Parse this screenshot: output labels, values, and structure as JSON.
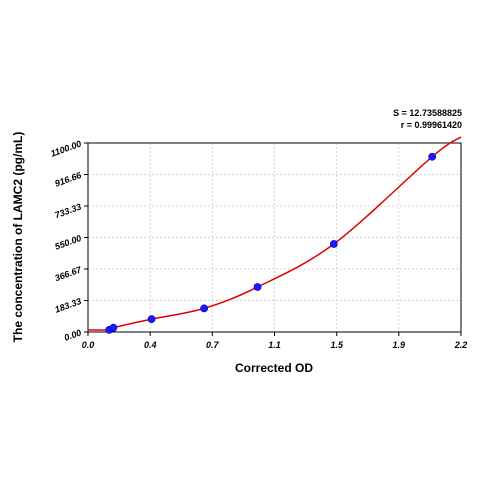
{
  "chart_data": {
    "type": "scatter",
    "xlabel": "Corrected OD",
    "ylabel": "The concentration of LAMC2 (pg/mL)",
    "xlim": [
      0.0,
      2.2
    ],
    "ylim": [
      0.0,
      1100.0
    ],
    "x_ticks": [
      "0.0",
      "0.4",
      "0.7",
      "1.1",
      "1.5",
      "1.9",
      "2.2"
    ],
    "x_tick_values": [
      0.0,
      0.367,
      0.733,
      1.1,
      1.467,
      1.833,
      2.2
    ],
    "y_ticks": [
      "0.00",
      "183.33",
      "366.67",
      "550.00",
      "733.33",
      "916.66",
      "1100.00"
    ],
    "y_tick_values": [
      0.0,
      183.33,
      366.67,
      550.0,
      733.33,
      916.66,
      1100.0
    ],
    "grid": true,
    "annotations": {
      "s_label": "S = 12.73588825",
      "r_label": "r = 0.99961420"
    },
    "series": [
      {
        "values": [
          {
            "x": 0.125,
            "y": 12.5
          },
          {
            "x": 0.15,
            "y": 25.0
          },
          {
            "x": 0.375,
            "y": 75.0
          },
          {
            "x": 0.685,
            "y": 137.5
          },
          {
            "x": 1.0,
            "y": 262.0
          },
          {
            "x": 1.45,
            "y": 512.0
          },
          {
            "x": 2.03,
            "y": 1020.0
          }
        ],
        "marker_color": "#1a1aff",
        "line_color": "#e00000"
      }
    ]
  }
}
